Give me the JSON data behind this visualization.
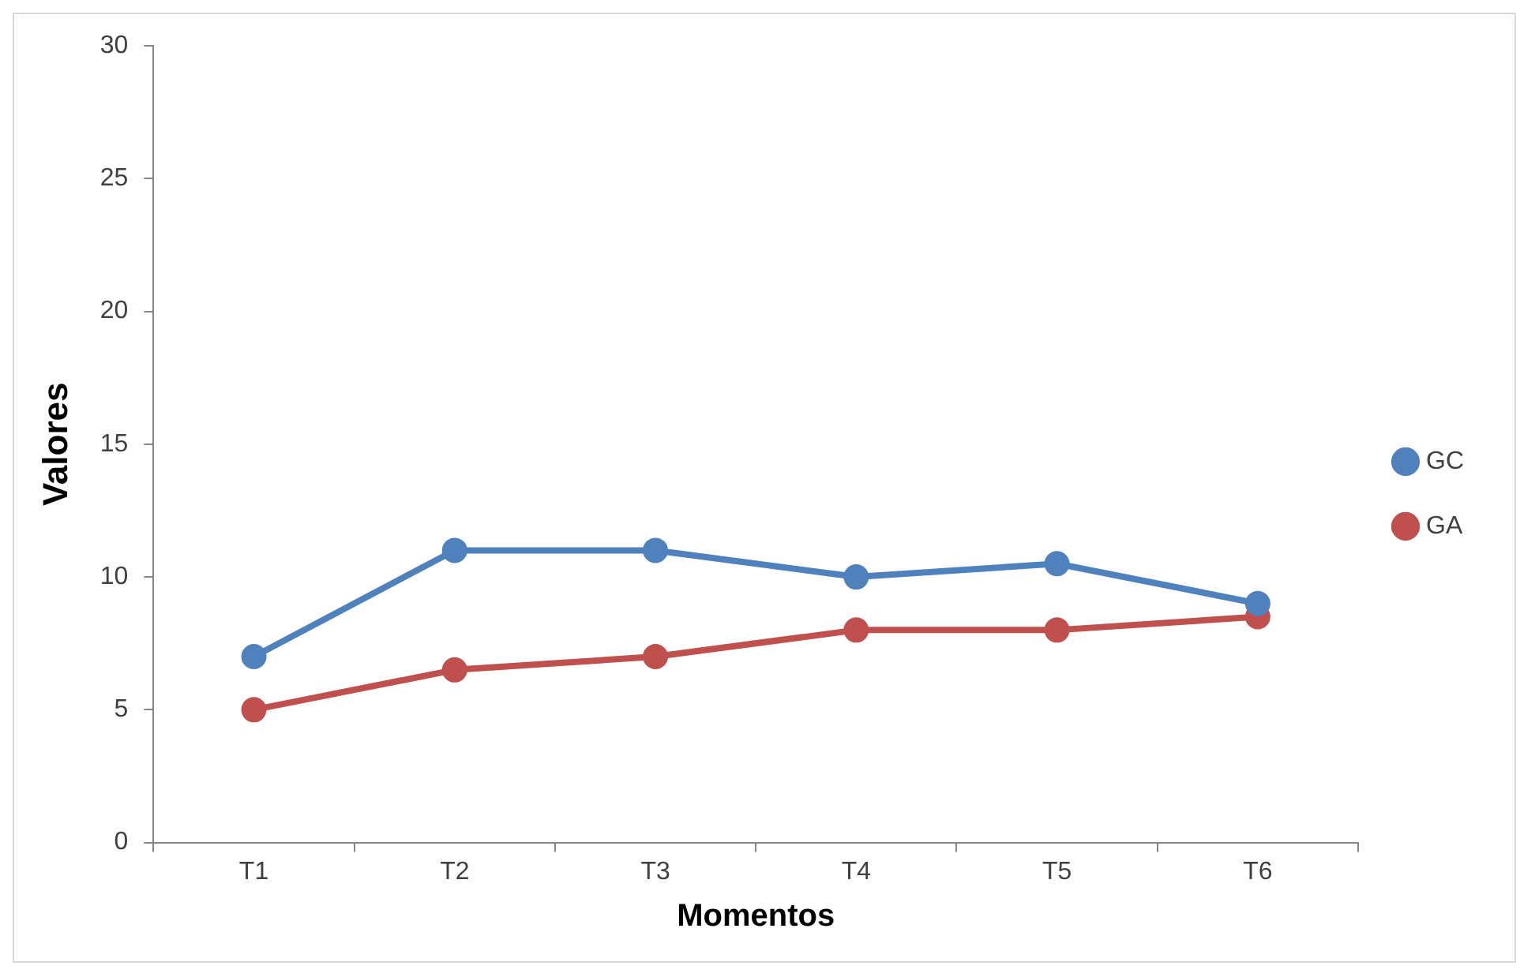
{
  "chart_data": {
    "type": "line",
    "xlabel": "Momentos",
    "ylabel": "Valores",
    "categories": [
      "T1",
      "T2",
      "T3",
      "T4",
      "T5",
      "T6"
    ],
    "series": [
      {
        "name": "GC",
        "color": "#4f81bd",
        "values": [
          7,
          11,
          11,
          10,
          10.5,
          9
        ]
      },
      {
        "name": "GA",
        "color": "#c0504d",
        "values": [
          5,
          6.5,
          7,
          8,
          8,
          8.5
        ]
      }
    ],
    "ylim": [
      0,
      30
    ],
    "yticks": [
      0,
      5,
      10,
      15,
      20,
      25,
      30
    ],
    "grid": false,
    "legend": "right",
    "marker": "circle",
    "line_style": "solid"
  }
}
